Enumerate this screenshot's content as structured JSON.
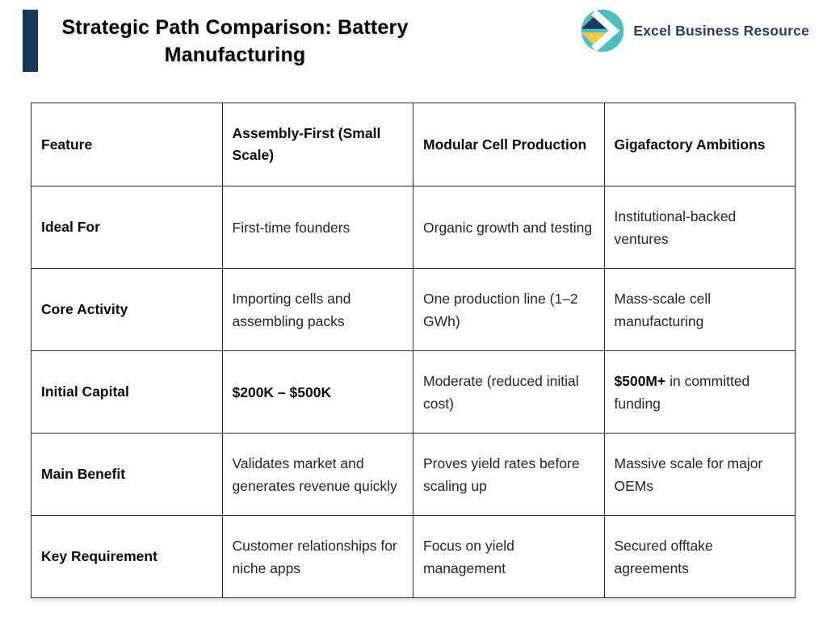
{
  "header": {
    "title_line1": "Strategic Path Comparison: Battery",
    "title_line2": "Manufacturing",
    "brand": "Excel Business Resource",
    "accent_color": "#17375C"
  },
  "logo": {
    "icon_name": "brand-arrow-diamond-icon",
    "circle_color": "#4CBFC0",
    "diamond_top_color": "#1F3A5F",
    "diamond_bottom_color": "#F5C843",
    "arrow_color": "#FFFFFF",
    "text_color": "#2A3B66"
  },
  "table": {
    "columns": [
      "Feature",
      "Assembly-First (Small Scale)",
      "Modular Cell Production",
      "Gigafactory Ambitions"
    ],
    "rows": [
      {
        "feature": "Ideal For",
        "cells": [
          "First-time founders",
          "Organic growth and testing",
          "Institutional-backed ventures"
        ]
      },
      {
        "feature": "Core Activity",
        "cells": [
          "Importing cells and assembling packs",
          "One production line (1–2 GWh)",
          "Mass-scale cell manufacturing"
        ]
      },
      {
        "feature": "Initial Capital",
        "cells": [
          [
            {
              "text": "$200K – $500K",
              "bold": true
            }
          ],
          "Moderate (reduced initial cost)",
          [
            {
              "text": "$500M+",
              "bold": true
            },
            {
              "text": " in committed funding",
              "bold": false
            }
          ]
        ]
      },
      {
        "feature": "Main Benefit",
        "cells": [
          "Validates market and generates revenue quickly",
          "Proves yield rates before scaling up",
          "Massive scale for major OEMs"
        ]
      },
      {
        "feature": "Key Requirement",
        "cells": [
          "Customer relationships for niche apps",
          "Focus on yield management",
          "Secured offtake agreements"
        ]
      }
    ]
  }
}
